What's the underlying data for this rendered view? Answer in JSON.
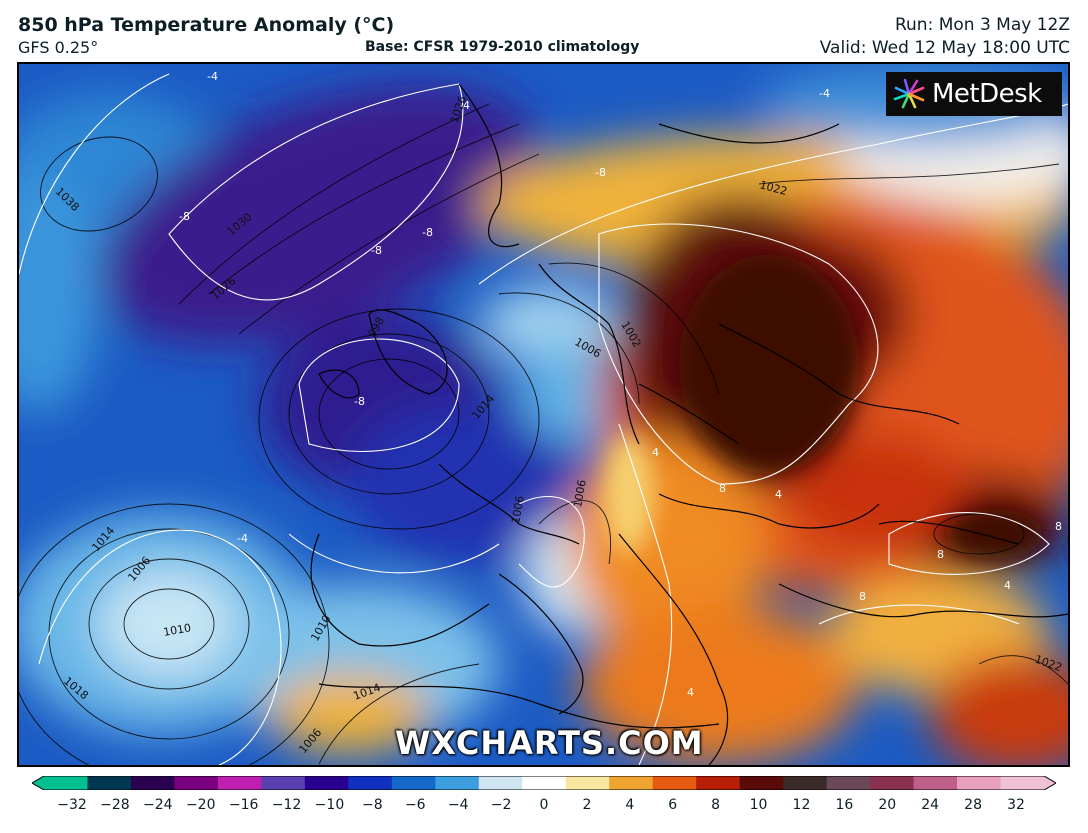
{
  "header": {
    "title": "850 hPa Temperature Anomaly (°C)",
    "model": "GFS 0.25°",
    "base": "Base: CFSR 1979-2010 climatology",
    "run": "Run: Mon 3 May 12Z",
    "valid": "Valid: Wed 12 May 18:00 UTC"
  },
  "logo": {
    "text": "MetDesk",
    "icon": "metdesk-burst-icon"
  },
  "watermark": "WXCHARTS.COM",
  "colorbar": {
    "ticks": [
      "−32",
      "−28",
      "−24",
      "−20",
      "−16",
      "−12",
      "−10",
      "−8",
      "−6",
      "−4",
      "−2",
      "0",
      "2",
      "4",
      "6",
      "8",
      "10",
      "12",
      "16",
      "20",
      "24",
      "28",
      "32"
    ],
    "colors": [
      "#00c090",
      "#003850",
      "#2a0050",
      "#7a0080",
      "#c020b0",
      "#5a3fb0",
      "#2a0090",
      "#1030c0",
      "#1468c8",
      "#3d9fe0",
      "#cfe6f2",
      "#ffffff",
      "#f8e7a0",
      "#f0a430",
      "#e65a10",
      "#b81e06",
      "#5a0a08",
      "#3a2a28",
      "#6a4858",
      "#8a3050",
      "#c0608a",
      "#e8a0bc",
      "#f0c0d4"
    ]
  },
  "map_labels": [
    "-4",
    "-4",
    "-4",
    "-8",
    "-8",
    "-8",
    "-8",
    "-8",
    "-4",
    "4",
    "4",
    "4",
    "8",
    "8",
    "8",
    "4",
    "8",
    "1038",
    "1030",
    "1026",
    "1026",
    "1022",
    "998",
    "1006",
    "1002",
    "1014",
    "1010",
    "1006",
    "1006",
    "1014",
    "1010",
    "1018",
    "1014",
    "1006",
    "1006",
    "1022"
  ],
  "field_description": {
    "cold_anomaly_region": "western Europe, North Atlantic",
    "warm_anomaly_region": "eastern Europe, Russia, North Africa"
  }
}
